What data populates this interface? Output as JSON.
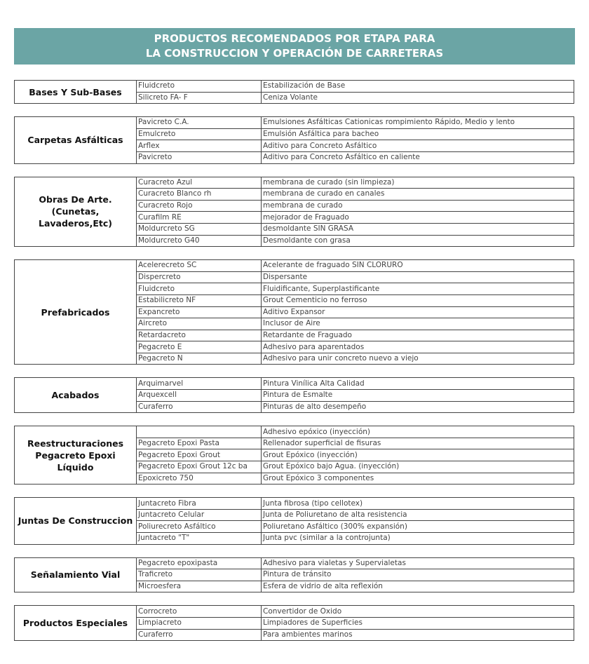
{
  "header": {
    "title_lines": [
      "PRODUCTOS RECOMENDADOS POR ETAPA PARA",
      "LA CONSTRUCCION Y OPERACIÓN DE CARRETERAS"
    ]
  },
  "sections": [
    {
      "category": [
        "Bases Y Sub-Bases"
      ],
      "rows": [
        [
          "Fluidcreto",
          "Estabilización de Base"
        ],
        [
          "Silicreto FA- F",
          "Ceniza Volante"
        ]
      ]
    },
    {
      "category": [
        "Carpetas Asfálticas"
      ],
      "rows": [
        [
          "Pavicreto C.A.",
          "Emulsiones Asfálticas Cationicas rompimiento Rápido, Medio y lento"
        ],
        [
          "Emulcreto",
          "Emulsión Asfáltica para bacheo"
        ],
        [
          "Arflex",
          "Aditivo para Concreto Asfáltico"
        ],
        [
          "Pavicreto",
          "Aditivo para Concreto Asfáltico en caliente"
        ]
      ]
    },
    {
      "category": [
        "Obras De Arte.",
        "(Cunetas, Lavaderos,Etc)"
      ],
      "rows": [
        [
          "Curacreto Azul",
          "membrana de curado (sin limpieza)"
        ],
        [
          "Curacreto Blanco rh",
          "membrana de curado en canales"
        ],
        [
          "Curacreto Rojo",
          "membrana de curado"
        ],
        [
          "Curafilm RE",
          "mejorador de Fraguado"
        ],
        [
          "Moldurcreto SG",
          "desmoldante SIN GRASA"
        ],
        [
          "Moldurcreto G40",
          "Desmoldante con grasa"
        ]
      ]
    },
    {
      "category": [
        "Prefabricados"
      ],
      "rows": [
        [
          "Acelerecreto SC",
          "Acelerante de fraguado SIN CLORURO"
        ],
        [
          "Dispercreto",
          "Dispersante"
        ],
        [
          "Fluidcreto",
          "Fluidificante, Superplastificante"
        ],
        [
          "Estabilicreto NF",
          "Grout Cementicio no ferroso"
        ],
        [
          "Expancreto",
          "Aditivo Expansor"
        ],
        [
          "Aircreto",
          "Inclusor de Aire"
        ],
        [
          "Retardacreto",
          "Retardante de Fraguado"
        ],
        [
          "Pegacreto E",
          "Adhesivo para aparentados"
        ],
        [
          "Pegacreto N",
          "Adhesivo para unir concreto nuevo a viejo"
        ]
      ]
    },
    {
      "category": [
        "Acabados"
      ],
      "rows": [
        [
          "Arquimarvel",
          "Pintura Vinílica Alta Calidad"
        ],
        [
          "Arquexcell",
          "Pintura de Esmalte"
        ],
        [
          "Curaferro",
          "Pinturas de alto desempeño"
        ]
      ]
    },
    {
      "category": [
        "Reestructuraciones",
        "Pegacreto Epoxi Líquido"
      ],
      "rows": [
        [
          null,
          "Adhesivo epóxico (inyección)"
        ],
        [
          "Pegacreto Epoxi Pasta",
          "Rellenador superficial de fisuras"
        ],
        [
          "Pegacreto Epoxi Grout",
          "Grout Epóxico (inyección)"
        ],
        [
          "Pegacreto Epoxi Grout 12c ba",
          "Grout Epóxico bajo Agua. (inyección)"
        ],
        [
          "Epoxicreto 750",
          "Grout Epóxico 3 componentes"
        ]
      ]
    },
    {
      "category": [
        "Juntas De Construccion"
      ],
      "rows": [
        [
          "Juntacreto Fibra",
          "Junta fibrosa (tipo cellotex)"
        ],
        [
          "Juntacreto Celular",
          "Junta de Poliuretano de alta resistencia"
        ],
        [
          "Poliurecreto Asfáltico",
          "Poliuretano Asfáltico (300% expansión)"
        ],
        [
          "Juntacreto \"T\"",
          "Junta pvc (similar a la controjunta)"
        ]
      ]
    },
    {
      "category": [
        "Señalamiento Vial"
      ],
      "rows": [
        [
          "Pegacreto epoxipasta",
          "Adhesivo para vialetas y Supervialetas"
        ],
        [
          "Traficreto",
          "Pintura de tránsito"
        ],
        [
          "Microesfera",
          "Esfera de vidrio de alta reflexión"
        ]
      ]
    },
    {
      "category": [
        "Productos Especiales"
      ],
      "rows": [
        [
          "Corrocreto",
          "Convertidor de Oxido"
        ],
        [
          "Limpiacreto",
          "Limpiadores de Superficies"
        ],
        [
          "Curaferro",
          "Para ambientes marinos"
        ]
      ]
    }
  ]
}
